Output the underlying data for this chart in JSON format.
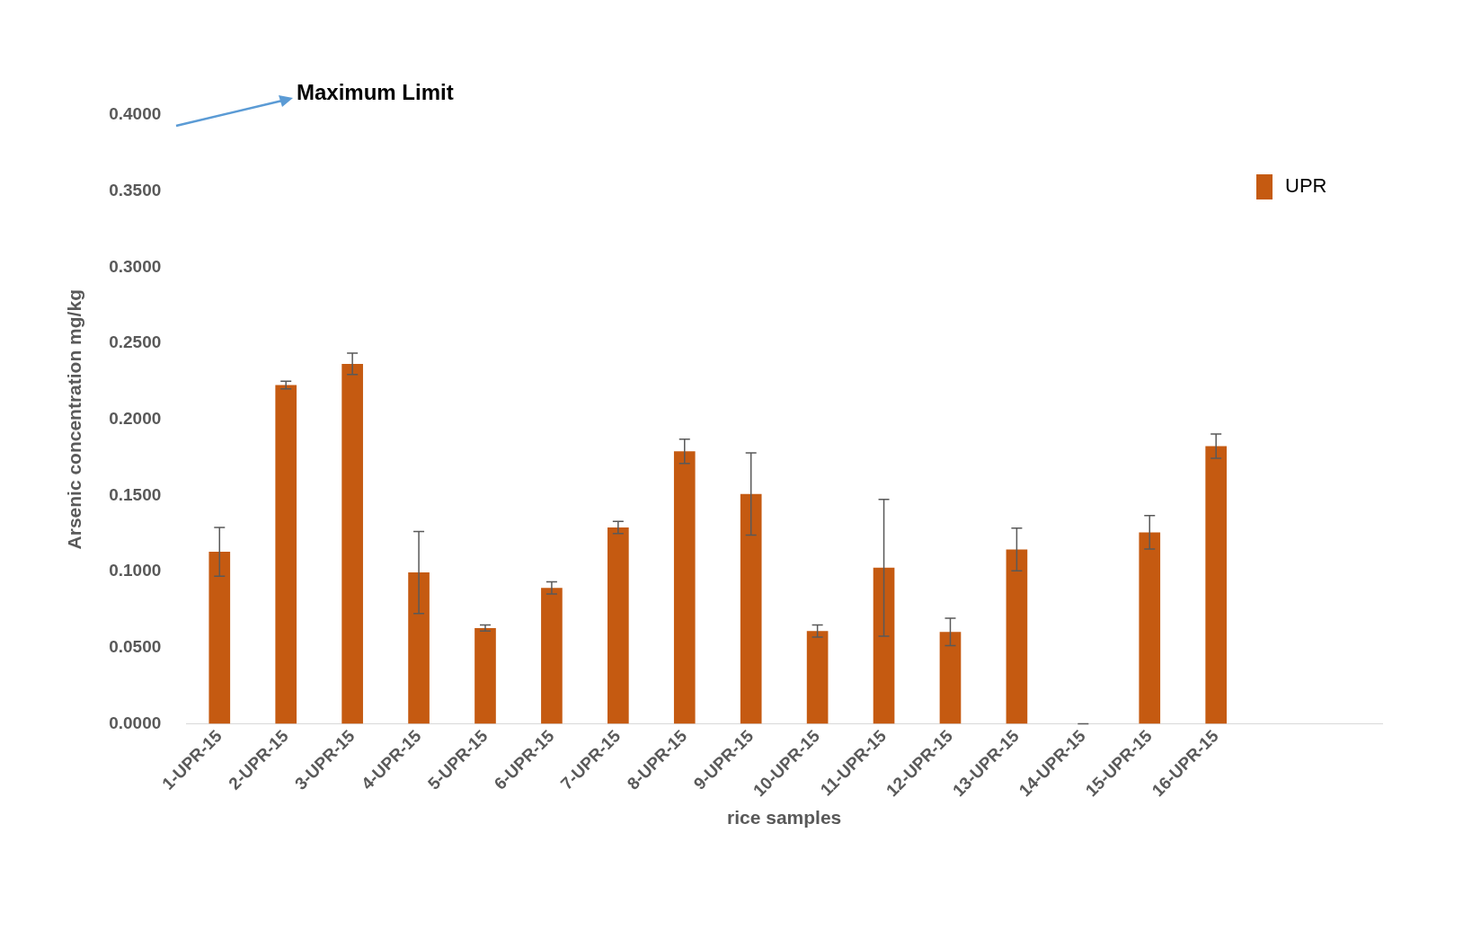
{
  "chart_data": {
    "type": "bar",
    "xlabel": "rice samples",
    "ylabel": "Arsenic concentration mg/kg",
    "categories": [
      "1-UPR-15",
      "2-UPR-15",
      "3-UPR-15",
      "4-UPR-15",
      "5-UPR-15",
      "6-UPR-15",
      "7-UPR-15",
      "8-UPR-15",
      "9-UPR-15",
      "10-UPR-15",
      "11-UPR-15",
      "12-UPR-15",
      "13-UPR-15",
      "14-UPR-15",
      "15-UPR-15",
      "16-UPR-15",
      null,
      null
    ],
    "series": [
      {
        "name": "UPR",
        "color": "#c55a11",
        "values": [
          0.113,
          0.2226,
          0.2365,
          0.0994,
          0.0629,
          0.0893,
          0.129,
          0.179,
          0.151,
          0.061,
          0.1025,
          0.0604,
          0.1145,
          0,
          0.1258,
          0.1824,
          null,
          null
        ],
        "errors": [
          0.016,
          0.0025,
          0.007,
          0.027,
          0.002,
          0.004,
          0.004,
          0.008,
          0.027,
          0.004,
          0.045,
          0.009,
          0.014,
          0,
          0.011,
          0.008,
          null,
          null
        ]
      }
    ],
    "ylim": [
      0,
      0.4
    ],
    "yticks": [
      {
        "value": 0,
        "label": "0.0000"
      },
      {
        "value": 0.05,
        "label": "0.0500"
      },
      {
        "value": 0.1,
        "label": "0.1000"
      },
      {
        "value": 0.15,
        "label": "0.1500"
      },
      {
        "value": 0.2,
        "label": "0.2000"
      },
      {
        "value": 0.25,
        "label": "0.2500"
      },
      {
        "value": 0.3,
        "label": "0.3000"
      },
      {
        "value": 0.35,
        "label": "0.3500"
      },
      {
        "value": 0.4,
        "label": "0.4000"
      }
    ],
    "annotations": [
      "Maximum Limit"
    ],
    "grid": false,
    "legend": "top right"
  }
}
